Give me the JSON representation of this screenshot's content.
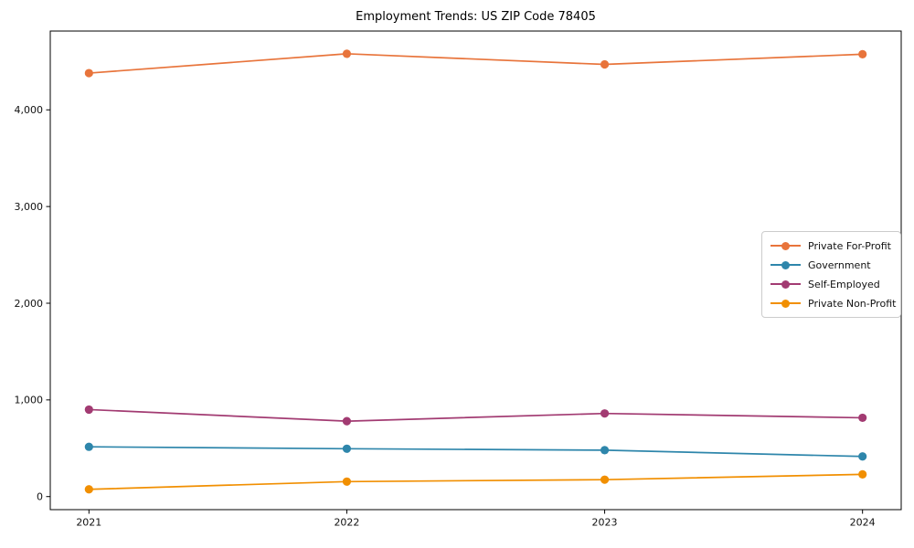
{
  "chart_data": {
    "type": "line",
    "title": "Employment Trends: US ZIP Code 78405",
    "xlabel": "",
    "ylabel": "",
    "x": [
      2021,
      2022,
      2023,
      2024
    ],
    "categories": [
      "2021",
      "2022",
      "2023",
      "2024"
    ],
    "series": [
      {
        "name": "Private For-Profit",
        "color": "#E8743B",
        "values": [
          4380,
          4580,
          4470,
          4575
        ]
      },
      {
        "name": "Government",
        "color": "#2E86AB",
        "values": [
          515,
          495,
          480,
          415
        ]
      },
      {
        "name": "Self-Employed",
        "color": "#A23B72",
        "values": [
          900,
          780,
          860,
          815
        ]
      },
      {
        "name": "Private Non-Profit",
        "color": "#F18F01",
        "values": [
          75,
          155,
          175,
          230
        ]
      }
    ],
    "yticks": [
      {
        "value": 0,
        "label": "0"
      },
      {
        "value": 1000,
        "label": "1,000"
      },
      {
        "value": 2000,
        "label": "2,000"
      },
      {
        "value": 3000,
        "label": "3,000"
      },
      {
        "value": 4000,
        "label": "4,000"
      }
    ],
    "xlim": [
      2020.85,
      2024.15
    ],
    "ylim": [
      -135,
      4815
    ],
    "grid": false,
    "legend_position": "center right",
    "marker": "circle",
    "axis_color": "#000000",
    "tick_label_color": "#111111"
  }
}
